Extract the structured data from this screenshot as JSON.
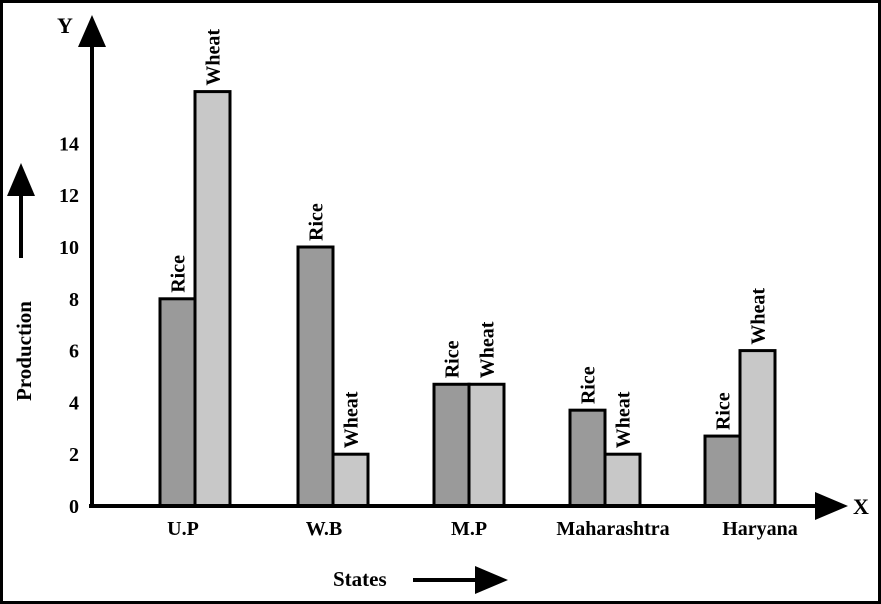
{
  "chart_data": {
    "type": "bar",
    "title": "",
    "xlabel": "States",
    "ylabel": "Production",
    "x_axis_letter": "X",
    "y_axis_letter": "Y",
    "categories": [
      "U.P",
      "W.B",
      "M.P",
      "Maharashtra",
      "Haryana"
    ],
    "series": [
      {
        "name": "Rice",
        "values": [
          8,
          10,
          4.7,
          3.7,
          2.7
        ],
        "color": "#9a9a9a"
      },
      {
        "name": "Wheat",
        "values": [
          16,
          2,
          4.7,
          2,
          6
        ],
        "color": "#c8c8c8"
      }
    ],
    "yticks": [
      0,
      2,
      4,
      6,
      8,
      10,
      12,
      14
    ],
    "ylim": [
      0,
      16
    ],
    "grid": false,
    "legend": "none",
    "bar_labels": "series-name-above-each-bar"
  }
}
